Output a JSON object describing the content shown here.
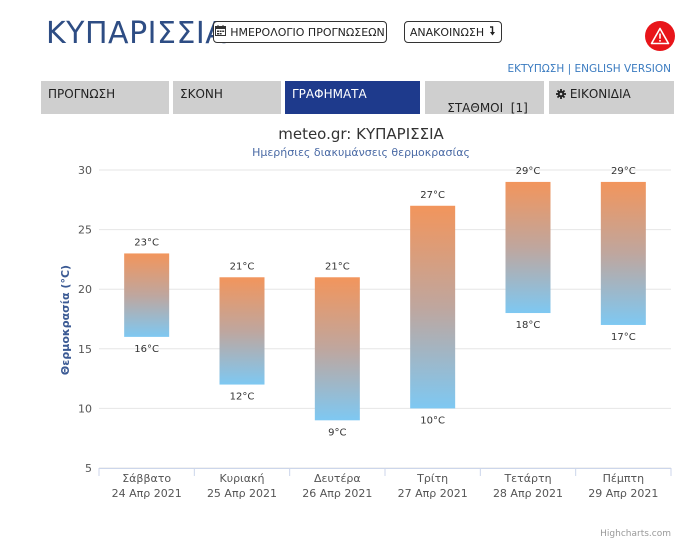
{
  "header": {
    "title": "ΚΥΠΑΡΙΣΣΙΑ",
    "forecast_calendar_label": "ΗΜΕΡΟΛΟΓΙΟ ΠΡΟΓΝΩΣΕΩΝ",
    "announcement_label": "ΑΝΑΚΟΙΝΩΣΗ",
    "print_label": "ΕΚΤΥΠΩΣΗ",
    "separator": "|",
    "english_label": "ENGLISH VERSION",
    "warning_color": "#e8151a",
    "icons": [
      "calendar-icon",
      "arrow-down-icon",
      "warning-icon"
    ]
  },
  "tabs": [
    {
      "label": "ΠΡΟΓΝΩΣΗ",
      "active": false
    },
    {
      "label": "ΣΚΟΝΗ",
      "active": false
    },
    {
      "label": "ΓΡΑΦΗΜΑΤΑ",
      "active": true
    },
    {
      "label": "ΣΤΑΘΜΟΙ  [1]",
      "active": false
    },
    {
      "label": "ΕΙΚΟΝΙΔΙΑ",
      "active": false,
      "icon": "gear-icon"
    }
  ],
  "colors": {
    "tab_active": "#1e3a8c",
    "tab_inactive": "#cfcfcf",
    "bar_top": "#f2955c",
    "bar_bottom": "#7ec8f2"
  },
  "chart_data": {
    "type": "columnrange",
    "title": "meteo.gr: ΚΥΠΑΡΙΣΣΙΑ",
    "subtitle": "Ημερήσιες διακυμάνσεις θερμοκρασίας",
    "ylabel": "Θερμοκρασία (°C)",
    "ylim": [
      5,
      30
    ],
    "yticks": [
      5,
      10,
      15,
      20,
      25,
      30
    ],
    "grid": true,
    "categories": [
      {
        "day": "Σάββατο",
        "date": "24 Απρ 2021"
      },
      {
        "day": "Κυριακή",
        "date": "25 Απρ 2021"
      },
      {
        "day": "Δευτέρα",
        "date": "26 Απρ 2021"
      },
      {
        "day": "Τρίτη",
        "date": "27 Απρ 2021"
      },
      {
        "day": "Τετάρτη",
        "date": "28 Απρ 2021"
      },
      {
        "day": "Πέμπτη",
        "date": "29 Απρ 2021"
      }
    ],
    "low": [
      16,
      12,
      9,
      10,
      18,
      17
    ],
    "high": [
      23,
      21,
      21,
      27,
      29,
      29
    ],
    "unit": "°C",
    "credit": "Highcharts.com"
  }
}
